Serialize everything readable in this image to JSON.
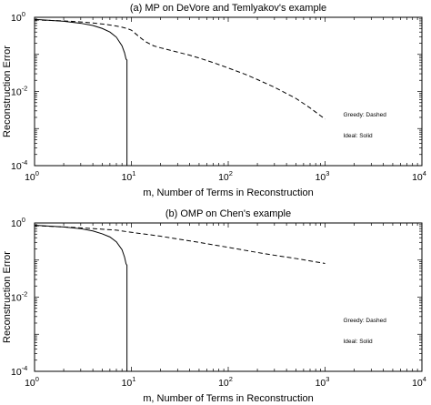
{
  "chart_data": [
    {
      "type": "line",
      "title": "(a) MP on DeVore and Temlyakov's example",
      "xlabel": "m, Number of Terms in Reconstruction",
      "ylabel": "Reconstruction Error",
      "xscale": "log",
      "yscale": "log",
      "xlim": [
        1,
        10000
      ],
      "ylim": [
        0.0001,
        1
      ],
      "x_tick_labels": [
        {
          "base": "10",
          "exp": "0"
        },
        {
          "base": "10",
          "exp": "1"
        },
        {
          "base": "10",
          "exp": "2"
        },
        {
          "base": "10",
          "exp": "3"
        },
        {
          "base": "10",
          "exp": "4"
        }
      ],
      "y_tick_labels": [
        {
          "base": "10",
          "exp": "0"
        },
        {
          "base": "10",
          "exp": "-2"
        },
        {
          "base": "10",
          "exp": "-4"
        }
      ],
      "annotations": [
        "Greedy: Dashed",
        "Ideal: Solid"
      ],
      "series": [
        {
          "style": "dashed",
          "x": [
            1,
            2,
            3,
            4,
            5,
            6,
            7,
            8,
            9,
            10,
            12,
            14,
            17,
            20,
            25,
            30,
            40,
            50,
            70,
            100,
            150,
            200,
            300,
            500,
            700,
            1000
          ],
          "y": [
            0.85,
            0.8,
            0.75,
            0.7,
            0.66,
            0.62,
            0.58,
            0.54,
            0.5,
            0.45,
            0.3,
            0.22,
            0.17,
            0.15,
            0.13,
            0.115,
            0.095,
            0.08,
            0.06,
            0.043,
            0.029,
            0.021,
            0.013,
            0.0065,
            0.0036,
            0.0018
          ]
        },
        {
          "style": "solid",
          "x": [
            1,
            2,
            3,
            4,
            5,
            6,
            7,
            8,
            8.5,
            8.8,
            9,
            9.0001
          ],
          "y": [
            0.88,
            0.78,
            0.69,
            0.6,
            0.5,
            0.4,
            0.29,
            0.17,
            0.11,
            0.075,
            0.07,
            0.0001
          ]
        }
      ]
    },
    {
      "type": "line",
      "title": "(b) OMP on Chen's example",
      "xlabel": "m, Number of Terms in Reconstruction",
      "ylabel": "Reconstruction Error",
      "xscale": "log",
      "yscale": "log",
      "xlim": [
        1,
        10000
      ],
      "ylim": [
        0.0001,
        1
      ],
      "x_tick_labels": [
        {
          "base": "10",
          "exp": "0"
        },
        {
          "base": "10",
          "exp": "1"
        },
        {
          "base": "10",
          "exp": "2"
        },
        {
          "base": "10",
          "exp": "3"
        },
        {
          "base": "10",
          "exp": "4"
        }
      ],
      "y_tick_labels": [
        {
          "base": "10",
          "exp": "0"
        },
        {
          "base": "10",
          "exp": "-2"
        },
        {
          "base": "10",
          "exp": "-4"
        }
      ],
      "annotations": [
        "Greedy: Dashed",
        "Ideal: Solid"
      ],
      "series": [
        {
          "style": "dashed",
          "x": [
            1,
            2,
            3,
            5,
            7,
            10,
            20,
            30,
            50,
            100,
            200,
            300,
            500,
            1000
          ],
          "y": [
            0.85,
            0.78,
            0.74,
            0.68,
            0.64,
            0.56,
            0.44,
            0.37,
            0.3,
            0.22,
            0.16,
            0.135,
            0.11,
            0.081
          ]
        },
        {
          "style": "solid",
          "x": [
            1,
            2,
            3,
            4,
            5,
            6,
            7,
            8,
            8.5,
            8.8,
            9,
            9.0001
          ],
          "y": [
            0.87,
            0.78,
            0.7,
            0.61,
            0.51,
            0.42,
            0.31,
            0.19,
            0.12,
            0.08,
            0.072,
            0.0001
          ]
        }
      ]
    }
  ]
}
